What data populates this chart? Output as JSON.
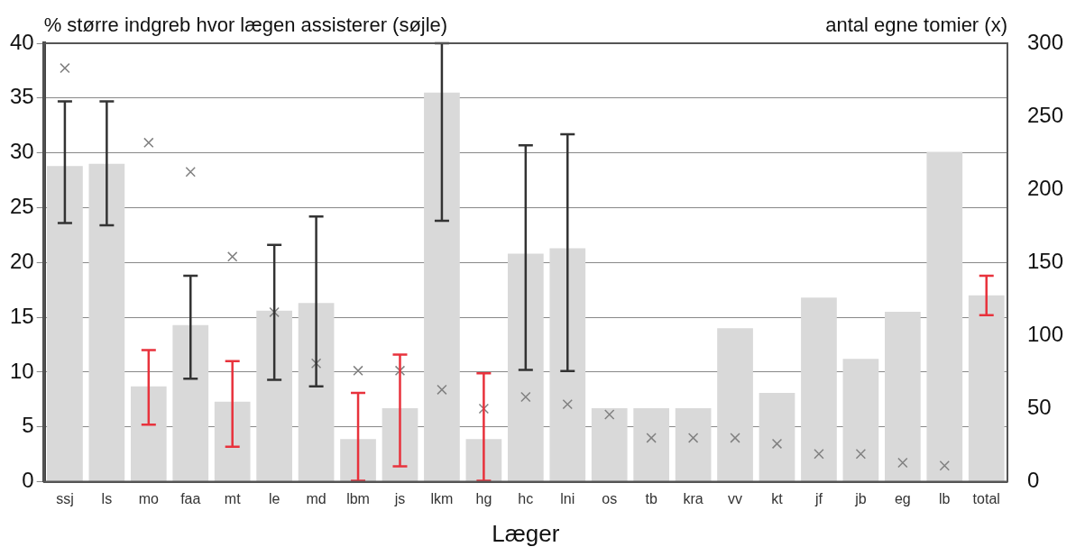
{
  "chart_data": {
    "type": "bar",
    "ylabel": "% større indgreb hvor lægen assisterer (søjle)",
    "y2label": "antal egne tomier (x)",
    "xlabel": "Læger",
    "categories": [
      "ssj",
      "ls",
      "mo",
      "faa",
      "mt",
      "le",
      "md",
      "lbm",
      "js",
      "lkm",
      "hg",
      "hc",
      "lni",
      "os",
      "tb",
      "kra",
      "vv",
      "kt",
      "jf",
      "jb",
      "eg",
      "lb",
      "total"
    ],
    "series": [
      {
        "color": "#d9d9d9",
        "values": [
          28.8,
          29.0,
          null,
          14.3,
          null,
          15.6,
          16.3,
          null,
          null,
          35.5,
          null,
          20.8,
          21.3,
          6.7,
          6.7,
          6.7,
          14.0,
          8.1,
          16.8,
          11.2,
          15.5,
          30.1,
          null
        ],
        "errors": [
          [
            23.6,
            34.7
          ],
          [
            23.4,
            34.7
          ],
          null,
          [
            9.4,
            18.8
          ],
          null,
          [
            9.3,
            21.6
          ],
          [
            8.7,
            24.2
          ],
          null,
          null,
          [
            23.8,
            40
          ],
          null,
          [
            10.2,
            30.7
          ],
          [
            10.1,
            31.7
          ],
          null,
          null,
          null,
          null,
          null,
          null,
          null,
          null,
          null,
          null
        ]
      },
      {
        "color": "#d9d9d9",
        "values": [
          null,
          null,
          8.7,
          null,
          7.3,
          null,
          null,
          3.9,
          6.7,
          null,
          3.9,
          null,
          null,
          null,
          null,
          null,
          null,
          null,
          null,
          null,
          null,
          null,
          17.0
        ],
        "errors": [
          null,
          null,
          [
            5.2,
            12.0
          ],
          null,
          [
            3.2,
            11.0
          ],
          null,
          null,
          [
            0.1,
            8.1
          ],
          [
            1.4,
            11.6
          ],
          null,
          [
            0.1,
            9.9
          ],
          null,
          null,
          null,
          null,
          null,
          null,
          null,
          null,
          null,
          null,
          null,
          [
            15.2,
            18.8
          ]
        ]
      },
      {
        "type": "scatter",
        "axis": "y2",
        "color": "#808080",
        "marker": "cross",
        "values": [
          283,
          null,
          232,
          212,
          154,
          116,
          81,
          76,
          76,
          63,
          50,
          58,
          53,
          46,
          30,
          30,
          30,
          26,
          19,
          19,
          13,
          11,
          null
        ]
      }
    ],
    "ylim": [
      0,
      40
    ],
    "yticks": [
      0,
      5,
      10,
      15,
      20,
      25,
      30,
      35,
      40
    ],
    "y2lim": [
      0,
      300
    ],
    "y2ticks": [
      0,
      50,
      100,
      150,
      200,
      250,
      300
    ],
    "grid": "y",
    "legend": false
  }
}
